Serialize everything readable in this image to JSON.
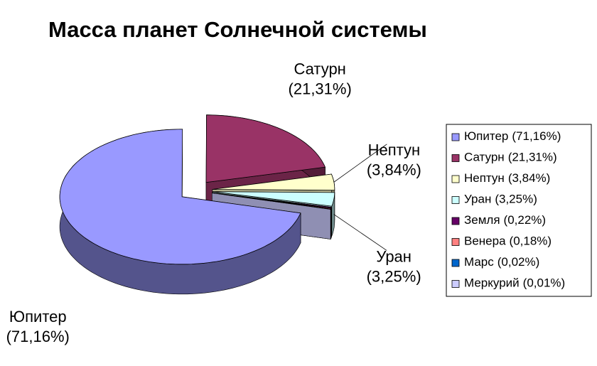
{
  "chart_data": {
    "type": "pie",
    "title": "Масса планет Солнечной системы",
    "categories": [
      "Юпитер",
      "Сатурн",
      "Нептун",
      "Уран",
      "Земля",
      "Венера",
      "Марс",
      "Меркурий"
    ],
    "values": [
      71.16,
      21.31,
      3.84,
      3.25,
      0.22,
      0.18,
      0.02,
      0.01
    ],
    "value_labels": [
      "(71,16%)",
      "(21,31%)",
      "(3,84%)",
      "(3,25%)",
      "(0,22%)",
      "(0,18%)",
      "(0,02%)",
      "(0,01%)"
    ],
    "colors": [
      "#9999ff",
      "#993366",
      "#ffffcc",
      "#ccffff",
      "#660066",
      "#ff8080",
      "#0066cc",
      "#ccccff"
    ],
    "legend": "right"
  }
}
